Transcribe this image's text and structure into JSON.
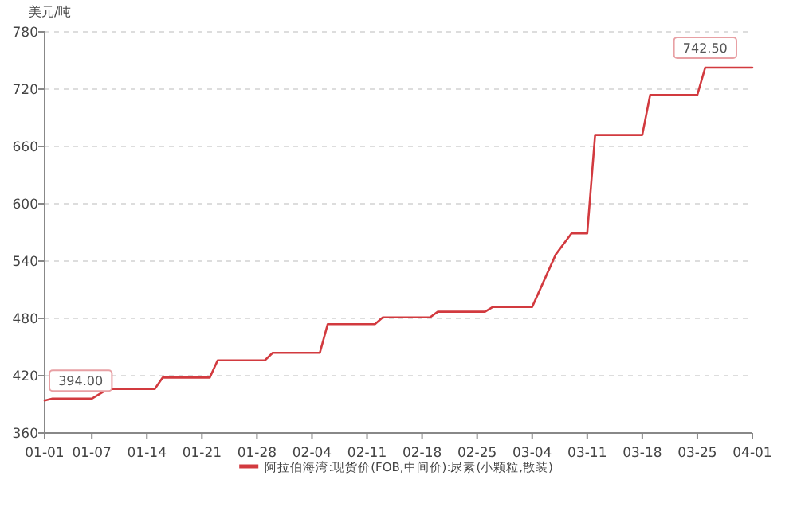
{
  "chart_data": {
    "type": "line",
    "ylabel": "美元/吨",
    "x": [
      "--01-01",
      "--01-02",
      "--01-07",
      "--01-09",
      "--01-15",
      "--01-16",
      "--01-22",
      "--01-23",
      "--01-29",
      "--01-30",
      "--02-05",
      "--02-06",
      "--02-12",
      "--02-13",
      "--02-19",
      "--02-20",
      "--02-26",
      "--02-27",
      "--03-04",
      "--03-07",
      "--03-09",
      "--03-11",
      "--03-12",
      "--03-18",
      "--03-19",
      "--03-25",
      "--03-26",
      "--04-01"
    ],
    "series": [
      {
        "name": "阿拉伯海湾:现货价(FOB,中间价):尿素(小颗粒,散装)",
        "color": "#d23a3f",
        "values": [
          394,
          396,
          396,
          406,
          406,
          418,
          418,
          436,
          436,
          444,
          444,
          474,
          474,
          481,
          481,
          487,
          487,
          492,
          492,
          547,
          569,
          569,
          672,
          672,
          714,
          714,
          742.5,
          742.5
        ],
        "value_labels": [
          "394.00",
          null,
          null,
          null,
          null,
          null,
          null,
          null,
          null,
          null,
          null,
          null,
          null,
          null,
          null,
          null,
          null,
          null,
          null,
          null,
          null,
          null,
          null,
          null,
          null,
          null,
          "742.50",
          null
        ]
      }
    ],
    "xlim": [
      "--01-01",
      "--04-01"
    ],
    "xticks": [
      {
        "value": "--01-01",
        "label": "01-01"
      },
      {
        "value": "--01-07",
        "label": "01-07"
      },
      {
        "value": "--01-14",
        "label": "01-14"
      },
      {
        "value": "--01-21",
        "label": "01-21"
      },
      {
        "value": "--01-28",
        "label": "01-28"
      },
      {
        "value": "--02-04",
        "label": "02-04"
      },
      {
        "value": "--02-11",
        "label": "02-11"
      },
      {
        "value": "--02-18",
        "label": "02-18"
      },
      {
        "value": "--02-25",
        "label": "02-25"
      },
      {
        "value": "--03-04",
        "label": "03-04"
      },
      {
        "value": "--03-11",
        "label": "03-11"
      },
      {
        "value": "--03-18",
        "label": "03-18"
      },
      {
        "value": "--03-25",
        "label": "03-25"
      },
      {
        "value": "--04-01",
        "label": "04-01"
      }
    ],
    "ylim": [
      360,
      780
    ],
    "yticks": [
      360,
      420,
      480,
      540,
      600,
      660,
      720,
      780
    ],
    "grid": "y",
    "legend": "bottom",
    "marker": "none",
    "line_style": "solid"
  }
}
